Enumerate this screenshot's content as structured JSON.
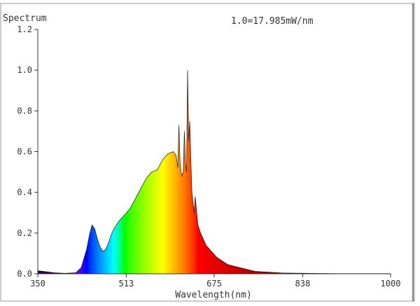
{
  "chart_data": {
    "type": "area",
    "title": "Spectrum",
    "annotation": "1.0=17.985mW/nm",
    "xlabel": "Wavelength(nm)",
    "ylabel": "",
    "xlim": [
      350,
      1000
    ],
    "ylim": [
      0,
      1.2
    ],
    "x_ticks": [
      350,
      513,
      675,
      838,
      1000
    ],
    "x_tick_labels": [
      "350",
      "513",
      "675",
      "838",
      "1000"
    ],
    "y_ticks": [
      0,
      0.2,
      0.4,
      0.6,
      0.8,
      1.0,
      1.2
    ],
    "y_tick_labels": [
      "0.0",
      "0.2",
      "0.4",
      "0.6",
      "0.8",
      "1.0",
      "1.2"
    ],
    "grid": false,
    "fill": "visible-spectrum",
    "series": [
      {
        "x": [
          350,
          360,
          380,
          400,
          420,
          430,
          440,
          445,
          450,
          455,
          460,
          465,
          470,
          475,
          480,
          485,
          490,
          495,
          500,
          510,
          520,
          530,
          540,
          550,
          560,
          570,
          580,
          590,
          600,
          605,
          608,
          610,
          612,
          614,
          616,
          618,
          620,
          622,
          624,
          626,
          628,
          630,
          632,
          634,
          636,
          638,
          640,
          645,
          650,
          660,
          680,
          700,
          750,
          800,
          850,
          900,
          950,
          1000
        ],
        "y": [
          0.015,
          0.012,
          0.005,
          0.002,
          0.005,
          0.03,
          0.12,
          0.19,
          0.24,
          0.22,
          0.17,
          0.13,
          0.11,
          0.12,
          0.15,
          0.19,
          0.22,
          0.24,
          0.26,
          0.29,
          0.32,
          0.37,
          0.42,
          0.47,
          0.5,
          0.51,
          0.56,
          0.59,
          0.6,
          0.58,
          0.52,
          0.73,
          0.55,
          0.5,
          0.48,
          0.5,
          0.7,
          0.55,
          0.5,
          1.0,
          0.65,
          0.75,
          0.55,
          0.4,
          0.35,
          0.3,
          0.38,
          0.24,
          0.2,
          0.14,
          0.08,
          0.045,
          0.012,
          0.004,
          0.002,
          0.001,
          0.001,
          0.001
        ]
      }
    ]
  }
}
